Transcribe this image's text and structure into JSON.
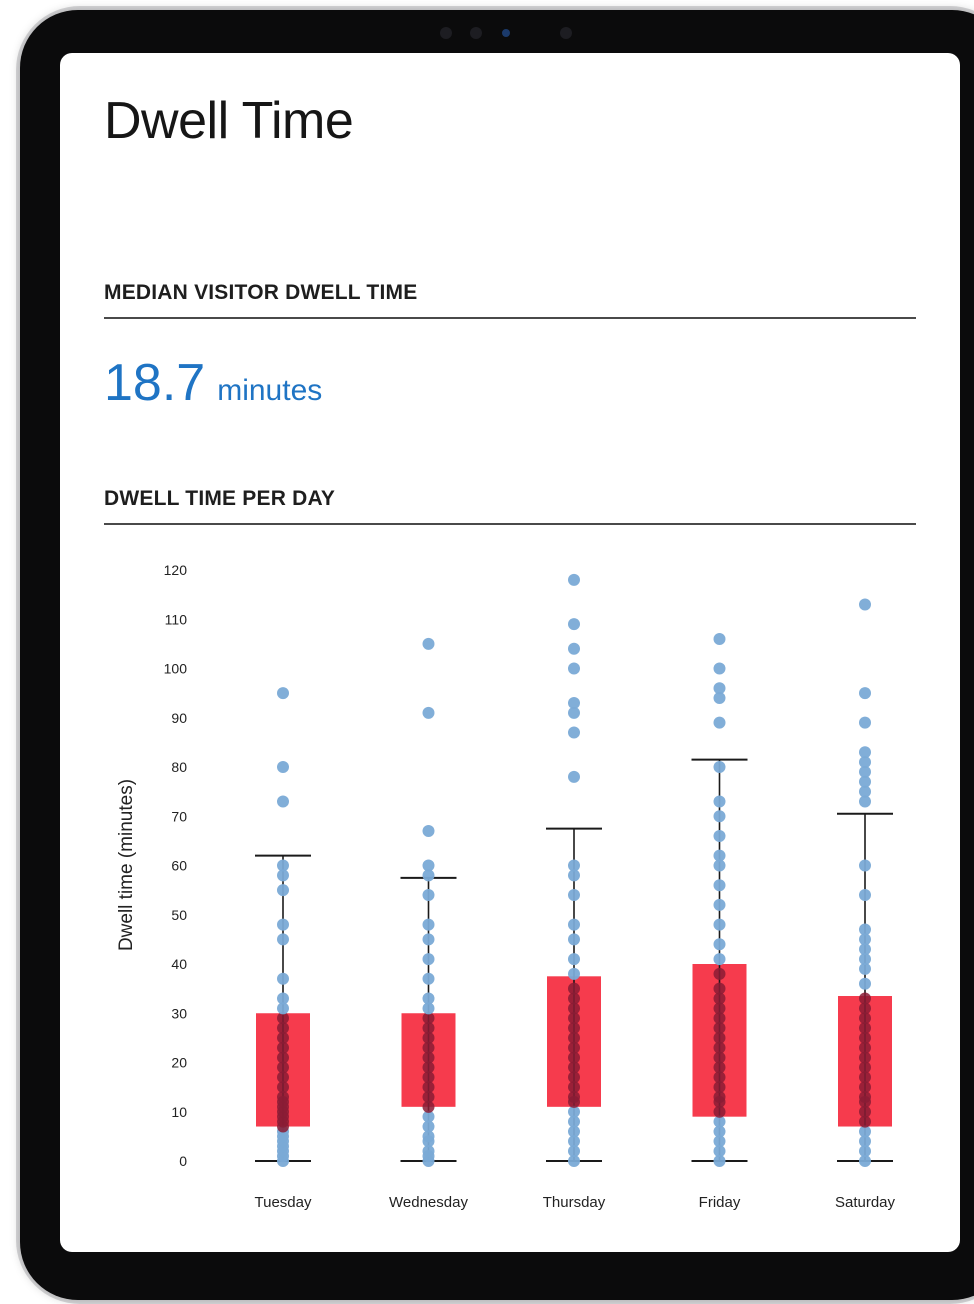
{
  "page": {
    "title": "Dwell Time"
  },
  "median_section": {
    "heading": "MEDIAN VISITOR DWELL TIME",
    "value": "18.7",
    "unit": "minutes"
  },
  "per_day_section": {
    "heading": "DWELL TIME PER DAY"
  },
  "colors": {
    "accent": "#1f74c4",
    "box_fill": "#f5263a",
    "point": "#7aaad6",
    "point_overlap": "#8a1c35",
    "whisker": "#1a1a1a"
  },
  "chart_data": {
    "type": "box",
    "ylabel": "Dwell time (minutes)",
    "xlabel": "",
    "ylim": [
      0,
      120
    ],
    "yticks": [
      0,
      10,
      20,
      30,
      40,
      50,
      60,
      70,
      80,
      90,
      100,
      110,
      120
    ],
    "grid": false,
    "categories": [
      "Tuesday",
      "Wednesday",
      "Thursday",
      "Friday",
      "Saturday"
    ],
    "boxes": [
      {
        "category": "Tuesday",
        "whisker_low": 0,
        "q1": 7,
        "q3": 30,
        "whisker_high": 62,
        "points": [
          0,
          1,
          2,
          3,
          4,
          5,
          6,
          7,
          8,
          9,
          10,
          11,
          12,
          13,
          15,
          17,
          19,
          21,
          23,
          25,
          27,
          29,
          31,
          33,
          37,
          45,
          48,
          55,
          58,
          60,
          73,
          80,
          95
        ]
      },
      {
        "category": "Wednesday",
        "whisker_low": 0,
        "q1": 11,
        "q3": 30,
        "whisker_high": 57.5,
        "points": [
          0,
          1,
          2,
          4,
          5,
          7,
          9,
          11,
          13,
          15,
          17,
          19,
          21,
          23,
          25,
          27,
          29,
          31,
          33,
          37,
          41,
          45,
          48,
          54,
          58,
          60,
          67,
          91,
          105
        ]
      },
      {
        "category": "Thursday",
        "whisker_low": 0,
        "q1": 11,
        "q3": 37.5,
        "whisker_high": 67.5,
        "points": [
          0,
          2,
          4,
          6,
          8,
          10,
          12,
          13,
          15,
          17,
          19,
          21,
          23,
          25,
          27,
          29,
          31,
          33,
          35,
          38,
          41,
          45,
          48,
          54,
          58,
          60,
          78,
          87,
          91,
          93,
          100,
          104,
          109,
          118
        ]
      },
      {
        "category": "Friday",
        "whisker_low": 0,
        "q1": 9,
        "q3": 40,
        "whisker_high": 81.5,
        "points": [
          0,
          2,
          4,
          6,
          8,
          10,
          12,
          13,
          15,
          17,
          19,
          21,
          23,
          25,
          27,
          29,
          31,
          33,
          35,
          38,
          41,
          44,
          48,
          52,
          56,
          60,
          62,
          66,
          70,
          73,
          80,
          89,
          94,
          96,
          100,
          106
        ]
      },
      {
        "category": "Saturday",
        "whisker_low": 0,
        "q1": 7,
        "q3": 33.5,
        "whisker_high": 70.5,
        "points": [
          0,
          2,
          4,
          6,
          8,
          10,
          12,
          13,
          15,
          17,
          19,
          21,
          23,
          25,
          27,
          29,
          31,
          33,
          36,
          39,
          41,
          43,
          45,
          47,
          54,
          60,
          73,
          75,
          77,
          79,
          81,
          83,
          89,
          95,
          113
        ]
      }
    ]
  }
}
